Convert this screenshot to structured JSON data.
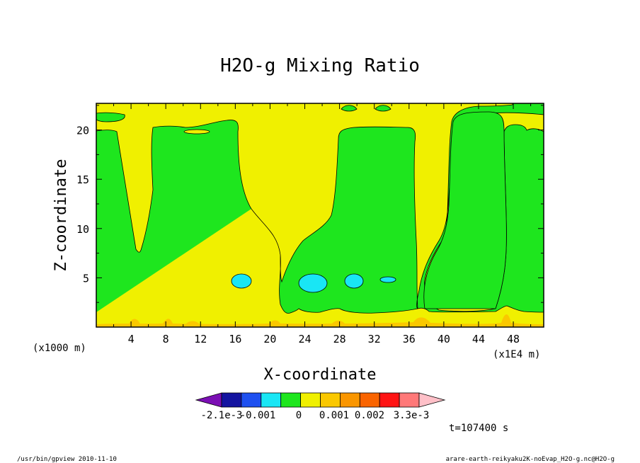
{
  "chart_data": {
    "type": "heatmap",
    "title": "H2O-g Mixing Ratio",
    "xlabel": "X-coordinate",
    "ylabel": "Z-coordinate",
    "x_unit_label": "(x1000 m)",
    "x_scale_label": "(x1E4 m)",
    "x_ticks": [
      "4",
      "8",
      "12",
      "16",
      "20",
      "24",
      "28",
      "32",
      "36",
      "40",
      "44",
      "48"
    ],
    "x_tick_values": [
      4,
      8,
      12,
      16,
      20,
      24,
      28,
      32,
      36,
      40,
      44,
      48
    ],
    "y_ticks": [
      "5",
      "10",
      "15",
      "20"
    ],
    "y_tick_values": [
      5,
      10,
      15,
      20
    ],
    "xlim": [
      0,
      51.5
    ],
    "ylim": [
      0,
      22.7
    ],
    "time_label": "t=107400 s",
    "colorbar": {
      "labels": [
        "-2.1e-3",
        "-0.001",
        "0",
        "0.001",
        "0.002",
        "3.3e-3"
      ],
      "colors": [
        "#7b0fb4",
        "#1414a0",
        "#1e50f0",
        "#19e6f5",
        "#1ee61e",
        "#f0f000",
        "#fac800",
        "#fa9600",
        "#fa6400",
        "#ff1414",
        "#ff7878",
        "#ffc0c8"
      ]
    },
    "fill_colors": {
      "background": "#f0f000",
      "green": "#1ee61e",
      "cyan": "#19e6f5",
      "orange": "#fac800"
    }
  },
  "footer": {
    "left": "/usr/bin/gpview  2010-11-10",
    "right": "arare-earth-reikyaku2K-noEvap_H2O-g.nc@H2O-g"
  }
}
